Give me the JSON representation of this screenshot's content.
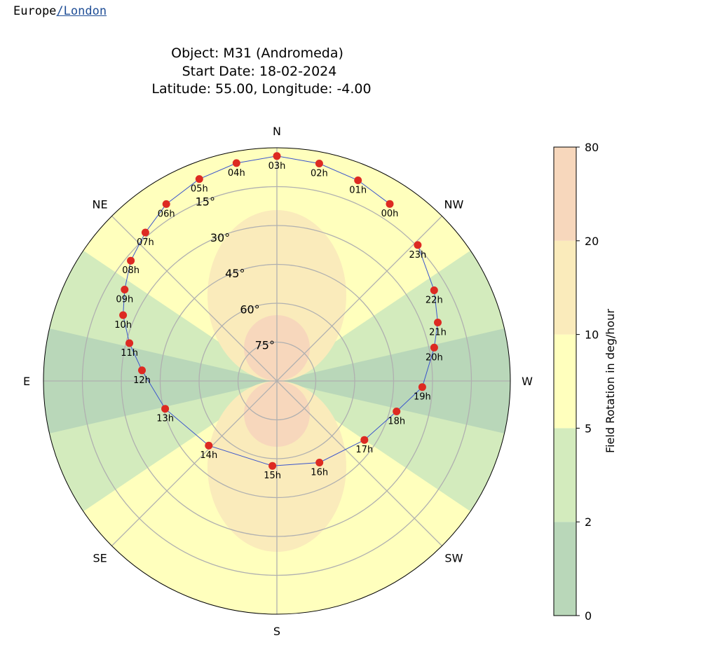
{
  "header": {
    "tz_region": "Europe",
    "tz_city": "/London"
  },
  "chart_data": {
    "type": "polar-scatter",
    "title": [
      "Object: M31 (Andromeda)",
      "Start Date: 18-02-2024",
      "Latitude: 55.00, Longitude: -4.00"
    ],
    "directions": [
      {
        "label": "N",
        "az": 0
      },
      {
        "label": "NE",
        "az": 45
      },
      {
        "label": "E",
        "az": 90
      },
      {
        "label": "SE",
        "az": 135
      },
      {
        "label": "S",
        "az": 180
      },
      {
        "label": "SW",
        "az": 225
      },
      {
        "label": "W",
        "az": 270
      },
      {
        "label": "NW",
        "az": 315
      }
    ],
    "altitude_ticks": [
      "15°",
      "30°",
      "45°",
      "60°",
      "75°"
    ],
    "altitude_values": [
      15,
      30,
      45,
      60,
      75
    ],
    "colorbar": {
      "label": "Field Rotation in deg/hour",
      "ticks": [
        "0",
        "2",
        "5",
        "10",
        "20",
        "80"
      ],
      "bands": [
        {
          "from": "0",
          "to": "2",
          "color": "#b9d7b9"
        },
        {
          "from": "2",
          "to": "5",
          "color": "#d3ebbd"
        },
        {
          "from": "5",
          "to": "10",
          "color": "#ffffbd"
        },
        {
          "from": "10",
          "to": "20",
          "color": "#faebbb"
        },
        {
          "from": "20",
          "to": "80",
          "color": "#f7d7bc"
        }
      ]
    },
    "track_color": "#3b55cc",
    "marker_color": "#dd2a22",
    "points": [
      {
        "label": "00h",
        "az": 327.5,
        "alt": 9
      },
      {
        "label": "01h",
        "az": 338,
        "alt": 6.5
      },
      {
        "label": "02h",
        "az": 349,
        "alt": 4.5
      },
      {
        "label": "03h",
        "az": 0,
        "alt": 3.2
      },
      {
        "label": "04h",
        "az": 10.5,
        "alt": 4.5
      },
      {
        "label": "05h",
        "az": 21,
        "alt": 6.5
      },
      {
        "label": "06h",
        "az": 32,
        "alt": 9.5
      },
      {
        "label": "07h",
        "az": 41.5,
        "alt": 13.5
      },
      {
        "label": "08h",
        "az": 50.5,
        "alt": 17
      },
      {
        "label": "09h",
        "az": 59,
        "alt": 21.5
      },
      {
        "label": "10h",
        "az": 66.8,
        "alt": 25.5
      },
      {
        "label": "11h",
        "az": 75.6,
        "alt": 31.3
      },
      {
        "label": "12h",
        "az": 85.5,
        "alt": 37.8
      },
      {
        "label": "13h",
        "az": 104,
        "alt": 45.6
      },
      {
        "label": "14h",
        "az": 133.5,
        "alt": 53.8
      },
      {
        "label": "15h",
        "az": 177,
        "alt": 57.2
      },
      {
        "label": "16h",
        "az": 207.5,
        "alt": 54.5
      },
      {
        "label": "17h",
        "az": 236,
        "alt": 49.3
      },
      {
        "label": "18h",
        "az": 255.7,
        "alt": 42.4
      },
      {
        "label": "19h",
        "az": 267.6,
        "alt": 33.9
      },
      {
        "label": "20h",
        "az": 282,
        "alt": 28
      },
      {
        "label": "21h",
        "az": 290,
        "alt": 24
      },
      {
        "label": "22h",
        "az": 300,
        "alt": 20
      },
      {
        "label": "23h",
        "az": 314,
        "alt": 14.5
      }
    ]
  }
}
